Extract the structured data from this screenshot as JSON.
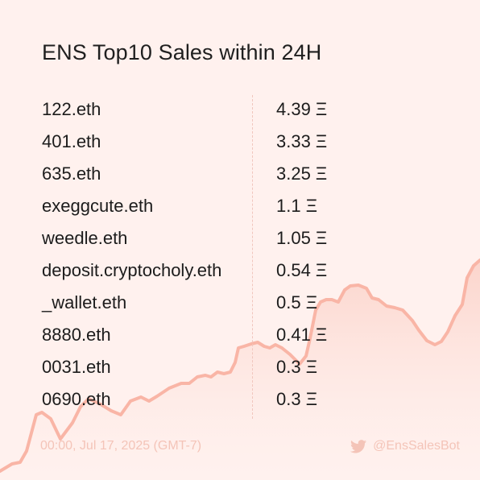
{
  "title": "ENS Top10 Sales within 24H",
  "sales": [
    {
      "name": "122.eth",
      "price": "4.39 Ξ"
    },
    {
      "name": "401.eth",
      "price": "3.33 Ξ"
    },
    {
      "name": "635.eth",
      "price": "3.25 Ξ"
    },
    {
      "name": "exeggcute.eth",
      "price": "1.1 Ξ"
    },
    {
      "name": "weedle.eth",
      "price": "1.05 Ξ"
    },
    {
      "name": "deposit.cryptocholy.eth",
      "price": "0.54 Ξ"
    },
    {
      "name": "_wallet.eth",
      "price": "0.5 Ξ"
    },
    {
      "name": "8880.eth",
      "price": "0.41 Ξ"
    },
    {
      "name": "0031.eth",
      "price": "0.3 Ξ"
    },
    {
      "name": "0690.eth",
      "price": "0.3 Ξ"
    }
  ],
  "footer": {
    "timestamp": "00:00, Jul 17, 2025 (GMT-7)",
    "handle": "@EnsSalesBot"
  },
  "colors": {
    "background": "#fff1ee",
    "accent_line": "#f9b5a6",
    "footer_text": "#f4c4b8"
  },
  "icons": {
    "social": "twitter-icon"
  }
}
